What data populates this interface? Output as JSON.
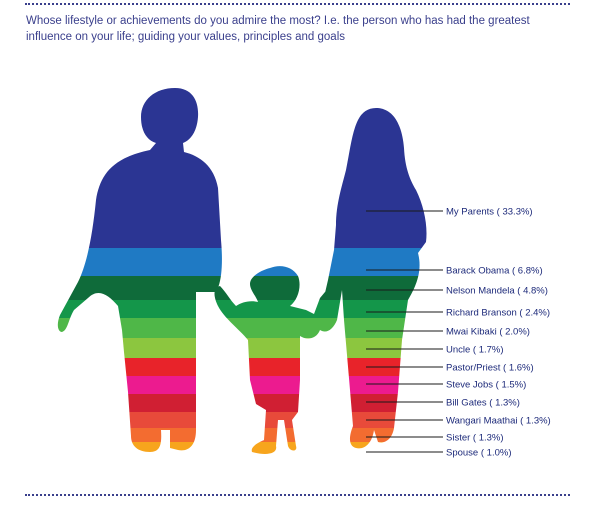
{
  "question": "Whose lifestyle or achievements do you admire the most? I.e. the person who has had the greatest influence on your life; guiding your values, principles and goals",
  "chart_data": {
    "type": "bar",
    "title": "",
    "categories": [
      "My Parents",
      "Barack Obama",
      "Nelson Mandela",
      "Richard Branson",
      "Mwai Kibaki",
      "Uncle",
      "Pastor/Priest",
      "Steve Jobs",
      "Bill Gates",
      "Wangari Maathai",
      "Sister",
      "Spouse"
    ],
    "values": [
      33.3,
      6.8,
      4.8,
      2.4,
      2.0,
      1.7,
      1.6,
      1.5,
      1.3,
      1.3,
      1.3,
      1.0
    ],
    "labels": [
      "My Parents ( 33.3%)",
      "Barack Obama ( 6.8%)",
      "Nelson Mandela ( 4.8%)",
      "Richard Branson ( 2.4%)",
      "Mwai Kibaki ( 2.0%)",
      "Uncle ( 1.7%)",
      "Pastor/Priest ( 1.6%)",
      "Steve Jobs ( 1.5%)",
      "Bill Gates ( 1.3%)",
      "Wangari Maathai ( 1.3%)",
      "Sister ( 1.3%)",
      "Spouse ( 1.0%)"
    ],
    "colors": [
      "#2b3593",
      "#1f7ac4",
      "#0f6b3a",
      "#14964a",
      "#4fb748",
      "#8cc63f",
      "#e8232a",
      "#ec1b8f",
      "#d01f33",
      "#e84a3a",
      "#f36c30",
      "#f7a51d"
    ],
    "legend": "right"
  }
}
